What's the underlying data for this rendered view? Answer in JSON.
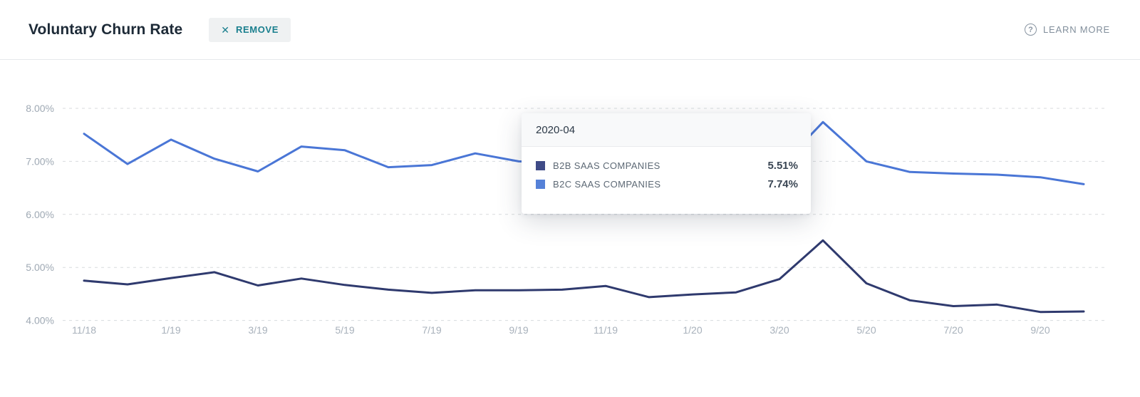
{
  "header": {
    "title": "Voluntary Churn Rate",
    "remove_label": "REMOVE",
    "remove_icon_glyph": "✕",
    "learn_more_label": "LEARN MORE",
    "learn_more_icon_glyph": "?",
    "accent_color": "#1a7f8e"
  },
  "tooltip": {
    "date": "2020-04",
    "rows": [
      {
        "label": "B2B SAAS COMPANIES",
        "value": "5.51%",
        "color": "#3f4b87"
      },
      {
        "label": "B2C SAAS COMPANIES",
        "value": "7.74%",
        "color": "#5581d8"
      }
    ]
  },
  "chart_data": {
    "type": "line",
    "title": "Voluntary Churn Rate",
    "grid": "horizontal dashed",
    "legend_position": "tooltip-only",
    "ylim": [
      4,
      8
    ],
    "y_ticks": [
      8,
      7,
      6,
      5,
      4
    ],
    "y_tick_labels": [
      "8.00%",
      "7.00%",
      "6.00%",
      "5.00%",
      "4.00%"
    ],
    "x": [
      "2018-11",
      "2018-12",
      "2019-01",
      "2019-02",
      "2019-03",
      "2019-04",
      "2019-05",
      "2019-06",
      "2019-07",
      "2019-08",
      "2019-09",
      "2019-10",
      "2019-11",
      "2019-12",
      "2020-01",
      "2020-02",
      "2020-03",
      "2020-04",
      "2020-05",
      "2020-06",
      "2020-07",
      "2020-08",
      "2020-09",
      "2020-10"
    ],
    "x_tick_labels": [
      "11/18",
      "1/19",
      "3/19",
      "5/19",
      "7/19",
      "9/19",
      "11/19",
      "1/20",
      "3/20",
      "5/20",
      "7/20",
      "9/20"
    ],
    "x_tick_every": 2,
    "series": [
      {
        "name": "B2B SAAS COMPANIES",
        "color": "#2f3a6e",
        "values": [
          4.75,
          4.68,
          4.8,
          4.91,
          4.66,
          4.79,
          4.67,
          4.58,
          4.52,
          4.57,
          4.57,
          4.58,
          4.65,
          4.44,
          4.49,
          4.53,
          4.78,
          5.51,
          4.7,
          4.38,
          4.27,
          4.3,
          4.16,
          4.17
        ]
      },
      {
        "name": "B2C SAAS COMPANIES",
        "color": "#4a76d6",
        "values": [
          7.52,
          6.95,
          7.41,
          7.05,
          6.81,
          7.28,
          7.21,
          6.89,
          6.93,
          7.15,
          7.0,
          6.97,
          6.93,
          6.9,
          6.89,
          6.88,
          6.88,
          7.74,
          7.0,
          6.8,
          6.77,
          6.75,
          6.7,
          6.57
        ]
      }
    ],
    "hovered_x": "2020-04"
  }
}
